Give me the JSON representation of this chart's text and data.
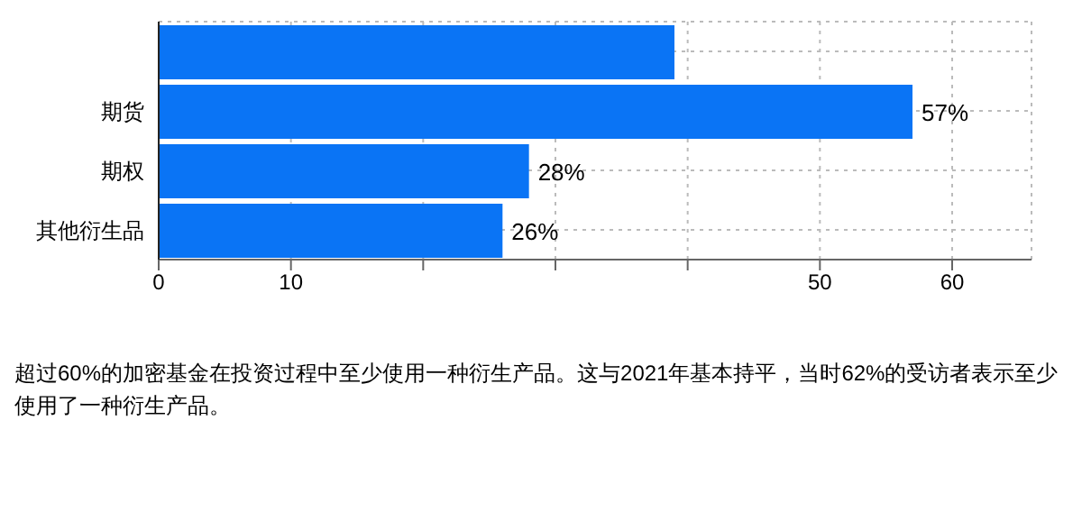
{
  "chart_data": {
    "type": "bar",
    "orientation": "horizontal",
    "categories": [
      null,
      "期货",
      "期权",
      "其他衍生品"
    ],
    "values": [
      39,
      57,
      28,
      26
    ],
    "color": "#0a74f5",
    "value_labels": [
      null,
      "57%",
      "28%",
      "26%"
    ],
    "xlim": [
      0,
      66
    ],
    "xticks": [
      0,
      10,
      {
        "value": 20,
        "label": null
      },
      {
        "value": 30,
        "label": null
      },
      {
        "value": 40,
        "label": null
      },
      50,
      60
    ],
    "grid": true,
    "annotations": [
      "超过60%的加密基金在投资过程中至少使用一种衍生产品。这与2021年基本持平，当时62%的受访者表示至少使用了一种衍生产品。"
    ]
  }
}
